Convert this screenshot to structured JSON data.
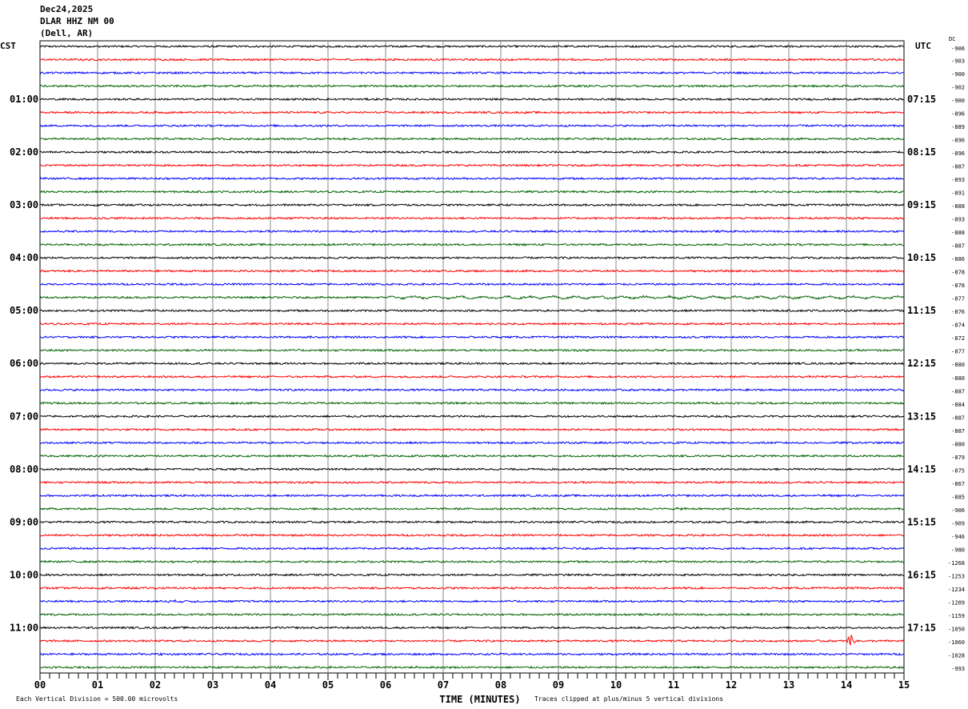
{
  "header": {
    "date": "Dec24,2025",
    "station": "DLAR HHZ NM 00",
    "location": "(Dell, AR)"
  },
  "chart_data": {
    "type": "line",
    "subtype": "helicorder",
    "xlabel": "TIME (MINUTES)",
    "x_ticks": [
      "00",
      "01",
      "02",
      "03",
      "04",
      "05",
      "06",
      "07",
      "08",
      "09",
      "10",
      "11",
      "12",
      "13",
      "14",
      "15"
    ],
    "xlim": [
      0,
      15
    ],
    "grid": true,
    "left_axis_title": "CST",
    "right_axis_title": "UTC",
    "dc_title": "DC",
    "left_labels": [
      "01:00",
      "02:00",
      "03:00",
      "04:00",
      "05:00",
      "06:00",
      "07:00",
      "08:00",
      "09:00",
      "10:00",
      "11:00"
    ],
    "right_labels": [
      "07:15",
      "08:15",
      "09:15",
      "10:15",
      "11:15",
      "12:15",
      "13:15",
      "14:15",
      "15:15",
      "16:15",
      "17:15"
    ],
    "trace_colors": [
      "#000000",
      "#ff0000",
      "#0000ff",
      "#006400"
    ],
    "dc_offsets": [
      "-906",
      "-903",
      "-900",
      "-902",
      "-900",
      "-896",
      "-889",
      "-896",
      "-896",
      "-887",
      "-893",
      "-891",
      "-888",
      "-893",
      "-888",
      "-887",
      "-886",
      "-878",
      "-878",
      "-877",
      "-876",
      "-874",
      "-872",
      "-877",
      "-880",
      "-880",
      "-887",
      "-884",
      "-887",
      "-887",
      "-880",
      "-879",
      "-875",
      "-867",
      "-885",
      "-906",
      "-909",
      "-946",
      "-980",
      "-1268",
      "-1253",
      "-1234",
      "-1209",
      "-1159",
      "-1050",
      "-1060",
      "-1028",
      "-993"
    ],
    "events": [
      {
        "trace": 19,
        "start_min": 6.0,
        "end_min": 15.0,
        "amplitude_div": 0.35,
        "period_min": 0.4
      },
      {
        "trace": 35,
        "start_min": 10.8,
        "end_min": 11.4,
        "amplitude_div": 0.25,
        "period_min": 0.02
      },
      {
        "trace": 42,
        "start_min": 1.9,
        "end_min": 3.0,
        "amplitude_div": 0.2,
        "period_min": 0.02
      },
      {
        "trace": 43,
        "start_min": 7.4,
        "end_min": 7.7,
        "amplitude_div": 0.3,
        "period_min": 0.02
      },
      {
        "trace": 45,
        "start_min": 14.0,
        "end_min": 14.15,
        "amplitude_div": 2.5,
        "period_min": 0.01
      },
      {
        "trace": 46,
        "start_min": 1.7,
        "end_min": 1.75,
        "amplitude_div": 0.9,
        "period_min": 0.01
      },
      {
        "trace": 46,
        "start_min": 2.05,
        "end_min": 2.12,
        "amplitude_div": 0.5,
        "period_min": 0.01
      }
    ],
    "scale_note": "Each Vertical Division =  500.00 microvolts",
    "clip_note": "Traces clipped at plus/minus 5 vertical divisions"
  }
}
